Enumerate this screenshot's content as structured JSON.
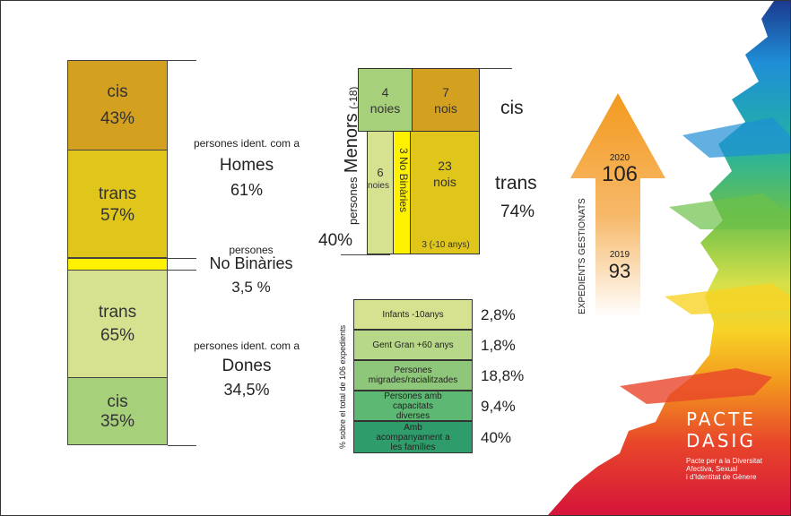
{
  "colors": {
    "cis_men": "#d4a020",
    "trans_men": "#e0c51a",
    "nonbinary": "#fff200",
    "trans_women": "#d7e290",
    "cis_women": "#a7d07b",
    "arrow": "#f39a1e",
    "green_bar_dark": "#2f9d6b"
  },
  "left_bar": {
    "men_cis": {
      "label": "cis",
      "pct": "43%"
    },
    "men_trans": {
      "label": "trans",
      "pct": "57%"
    },
    "women_trans": {
      "label": "trans",
      "pct": "65%"
    },
    "women_cis": {
      "label": "cis",
      "pct": "35%"
    }
  },
  "left_labels": {
    "men_line1": "persones ident. com a",
    "men_line2": "Homes",
    "men_pct": "61%",
    "nb_line1": "persones",
    "nb_line2": "No Binàries",
    "nb_pct": "3,5 %",
    "women_line1": "persones ident. com a",
    "women_line2": "Dones",
    "women_pct": "34,5%"
  },
  "minors": {
    "side_label_small": "persones",
    "side_label_big": "Menors",
    "side_label_age": "(-18)",
    "total_pct": "40%",
    "girls_cis": {
      "num": "4",
      "label": "noies"
    },
    "boys_cis": {
      "num": "7",
      "label": "nois"
    },
    "girls_trans": {
      "num": "6",
      "label": "noies"
    },
    "nb": "3 No Binàries",
    "boys_trans": {
      "num": "23",
      "label": "nois"
    },
    "under10": "3 (-10 anys)",
    "cis_label": "cis",
    "trans_label": "trans",
    "trans_pct": "74%"
  },
  "categories": {
    "side_label": "% sobre el total de 106 expedients",
    "rows": [
      {
        "label": "Infants -10anys",
        "value": "2,8%"
      },
      {
        "label": "Gent Gran +60 anys",
        "value": "1,8%"
      },
      {
        "label": "Persones migrades/racialitzades",
        "value": "18,8%"
      },
      {
        "label": "Persones amb capacitats diverses",
        "value": "9,4%"
      },
      {
        "label": "Amb acompanyament a les famílies",
        "value": "40%"
      }
    ]
  },
  "arrow": {
    "caption": "EXPEDIENTS GESTIONATS",
    "year_new": "2020",
    "count_new": "106",
    "year_old": "2019",
    "count_old": "93"
  },
  "logo": {
    "line1": "PACTE",
    "line2": "DASIG",
    "sub1": "Pacte per a la Diversitat",
    "sub2": "Afectiva, Sexual",
    "sub3": "i d'Identitat de Gènere"
  }
}
